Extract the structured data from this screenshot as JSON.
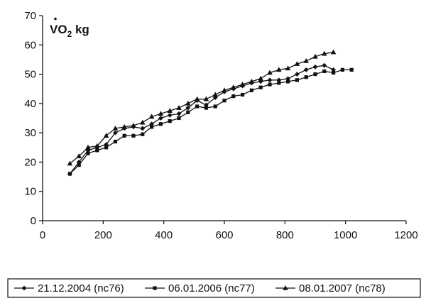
{
  "chart_data": {
    "type": "line",
    "title": "",
    "xlabel": "",
    "ylabel_main": "VO",
    "ylabel_sub": "2",
    "ylabel_tail": " kg",
    "xlim": [
      0,
      1200
    ],
    "ylim": [
      0,
      70
    ],
    "xticks": [
      0,
      200,
      400,
      600,
      800,
      1000,
      1200
    ],
    "yticks": [
      0,
      10,
      20,
      30,
      40,
      50,
      60,
      70
    ],
    "grid": false,
    "legend_position": "bottom",
    "series": [
      {
        "name": "21.12.2004 (nc76)",
        "marker": "diamond",
        "x": [
          90,
          120,
          150,
          180,
          210,
          240,
          270,
          300,
          330,
          360,
          390,
          420,
          450,
          480,
          510,
          540,
          570,
          600,
          630,
          660,
          690,
          720,
          750,
          780,
          810,
          840,
          870,
          900,
          930,
          960
        ],
        "y": [
          16,
          20,
          24,
          25,
          26,
          30,
          31.5,
          32,
          31.5,
          33,
          35,
          36,
          36.5,
          38.5,
          41,
          39.5,
          42,
          44,
          45,
          46,
          47,
          47.5,
          48,
          48,
          48.5,
          50,
          51.5,
          52.5,
          53,
          51.5
        ]
      },
      {
        "name": "06.01.2006 (nc77)",
        "marker": "square",
        "x": [
          90,
          120,
          150,
          180,
          210,
          240,
          270,
          300,
          330,
          360,
          390,
          420,
          450,
          480,
          510,
          540,
          570,
          600,
          630,
          660,
          690,
          720,
          750,
          780,
          810,
          840,
          870,
          900,
          930,
          960,
          990,
          1020
        ],
        "y": [
          16,
          19,
          23,
          24,
          25,
          27,
          29,
          29,
          29.5,
          32,
          33,
          34,
          35,
          37,
          39,
          38.5,
          39,
          41,
          42.5,
          43,
          44.5,
          45.5,
          46.5,
          47,
          47.5,
          48,
          49,
          50,
          51,
          50.5,
          51.5,
          51.5
        ]
      },
      {
        "name": "08.01.2007 (nc78)",
        "marker": "triangle",
        "x": [
          90,
          120,
          150,
          180,
          210,
          240,
          270,
          300,
          330,
          360,
          390,
          420,
          450,
          480,
          510,
          540,
          570,
          600,
          630,
          660,
          690,
          720,
          750,
          780,
          810,
          840,
          870,
          900,
          930,
          960
        ],
        "y": [
          19.5,
          22,
          25,
          25.5,
          29,
          31.5,
          32,
          32.5,
          33.5,
          35.5,
          36.5,
          37.5,
          38.5,
          40,
          41.5,
          41.5,
          43,
          44.5,
          45.5,
          46.5,
          47.5,
          48.5,
          50.5,
          51.5,
          52,
          53.5,
          54.5,
          56,
          57,
          57.5
        ]
      }
    ]
  }
}
